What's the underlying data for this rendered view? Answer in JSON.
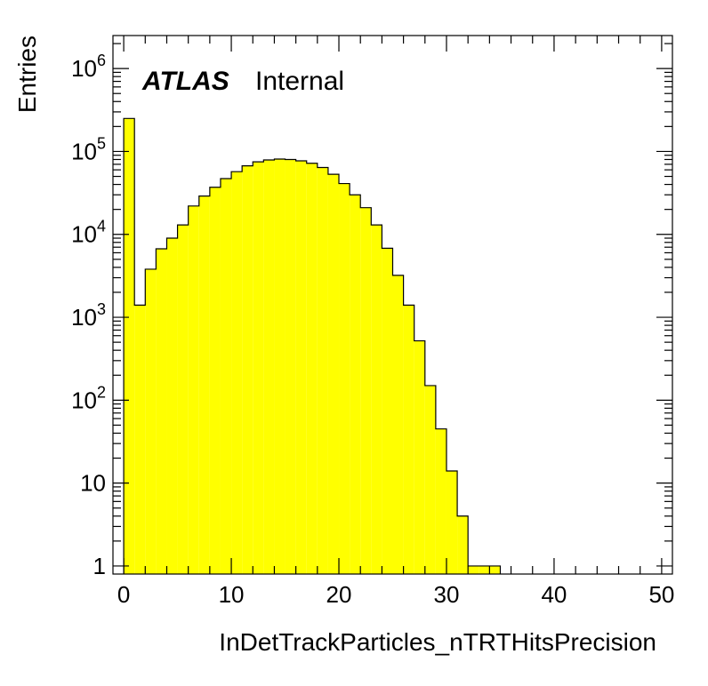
{
  "chart_data": {
    "type": "bar",
    "histogram": true,
    "fill_color": "#ffff00",
    "line_color": "#000000",
    "xlabel": "InDetTrackParticles_nTRTHitsPrecision",
    "ylabel": "Entries",
    "label_bold": "ATLAS",
    "label_text": "Internal",
    "xlim": [
      -1,
      51
    ],
    "ylim": [
      0.8,
      2500000
    ],
    "log_y": true,
    "grid": false,
    "x_ticks": [
      0,
      10,
      20,
      30,
      40,
      50
    ],
    "x_tick_labels": [
      "0",
      "10",
      "20",
      "30",
      "40",
      "50"
    ],
    "y_ticks": [
      {
        "value": 1,
        "base": "1",
        "exp": ""
      },
      {
        "value": 10,
        "base": "10",
        "exp": ""
      },
      {
        "value": 100,
        "base": "10",
        "exp": "2"
      },
      {
        "value": 1000,
        "base": "10",
        "exp": "3"
      },
      {
        "value": 10000,
        "base": "10",
        "exp": "4"
      },
      {
        "value": 100000,
        "base": "10",
        "exp": "5"
      },
      {
        "value": 1000000,
        "base": "10",
        "exp": "6"
      }
    ],
    "bin_width": 1,
    "bins_x": [
      0,
      1,
      2,
      3,
      4,
      5,
      6,
      7,
      8,
      9,
      10,
      11,
      12,
      13,
      14,
      15,
      16,
      17,
      18,
      19,
      20,
      21,
      22,
      23,
      24,
      25,
      26,
      27,
      28,
      29,
      30,
      31,
      32,
      33,
      34
    ],
    "bins_y": [
      250000,
      1400,
      3800,
      6700,
      9000,
      13000,
      22000,
      29000,
      37000,
      47000,
      57000,
      67000,
      75000,
      79000,
      81000,
      80000,
      77000,
      72000,
      64000,
      53000,
      41000,
      30000,
      21000,
      13000,
      6800,
      3200,
      1400,
      520,
      150,
      45,
      14,
      4,
      1,
      1,
      1
    ]
  }
}
